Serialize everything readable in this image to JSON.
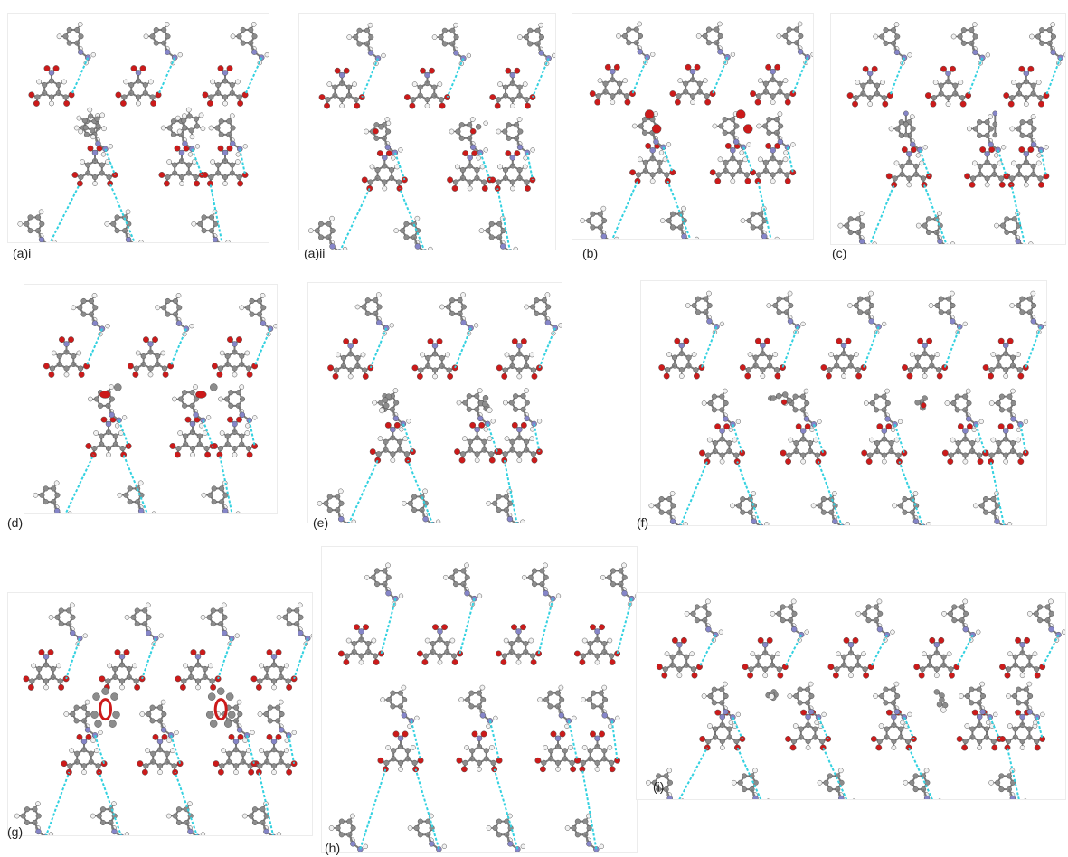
{
  "figure": {
    "panels": [
      {
        "id": "ai",
        "label": "(a)i",
        "guest": "aromatic"
      },
      {
        "id": "aii",
        "label": "(a)ii",
        "guest": "small"
      },
      {
        "id": "b",
        "label": "(b)",
        "guest": "red-pair"
      },
      {
        "id": "c",
        "label": "(c)",
        "guest": "linear"
      },
      {
        "id": "d",
        "label": "(d)",
        "guest": "red-single"
      },
      {
        "id": "e",
        "label": "(e)",
        "guest": "gray-cluster"
      },
      {
        "id": "f",
        "label": "(f)",
        "guest": "chain"
      },
      {
        "id": "g",
        "label": "(g)",
        "guest": "red-ring"
      },
      {
        "id": "h",
        "label": "(h)",
        "guest": "none"
      },
      {
        "id": "i",
        "label": "(i)",
        "guest": "gray-cluster"
      }
    ],
    "colors": {
      "carbon": "#8c8c8c",
      "hydrogen": "#f2f2f2",
      "oxygen": "#cc1a1a",
      "nitrogen": "#8585c8",
      "hbond": "#33d1e0",
      "bond": "#7a7a7a"
    }
  }
}
